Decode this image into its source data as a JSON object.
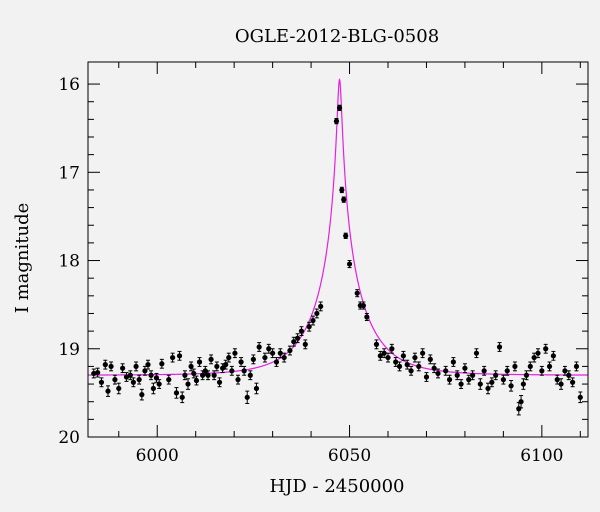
{
  "chart_data": {
    "type": "scatter",
    "title": "OGLE-2012-BLG-0508",
    "xlabel": "HJD - 2450000",
    "ylabel": "I magnitude",
    "xlim": [
      5982,
      6112
    ],
    "ylim": [
      20,
      15.75
    ],
    "y_inverted": true,
    "x_ticks": [
      6000,
      6050,
      6100
    ],
    "x_tick_labels": [
      "6000",
      "6050",
      "6100"
    ],
    "y_ticks": [
      16,
      17,
      18,
      19,
      20
    ],
    "y_tick_labels": [
      "16",
      "17",
      "18",
      "19",
      "20"
    ],
    "grid": false,
    "colors": {
      "model": "#e61ee6",
      "points": "#000000",
      "background": "#f2f2f2"
    },
    "model": {
      "name": "",
      "t0": 6047.4,
      "baseline_mag": 19.3,
      "peak_mag": 15.95,
      "u0": 0.046,
      "tE": 12
    },
    "series": [
      {
        "name": "",
        "points": [
          [
            5983.5,
            19.28,
            0.05
          ],
          [
            5984.5,
            19.27,
            0.05
          ],
          [
            5985.5,
            19.38,
            0.05
          ],
          [
            5986.5,
            19.18,
            0.05
          ],
          [
            5987.2,
            19.48,
            0.06
          ],
          [
            5988.0,
            19.2,
            0.05
          ],
          [
            5989.0,
            19.35,
            0.05
          ],
          [
            5990.0,
            19.45,
            0.06
          ],
          [
            5991.0,
            19.22,
            0.05
          ],
          [
            5992.0,
            19.32,
            0.05
          ],
          [
            5993.0,
            19.3,
            0.05
          ],
          [
            5993.8,
            19.38,
            0.05
          ],
          [
            5994.5,
            19.2,
            0.05
          ],
          [
            5995.3,
            19.35,
            0.05
          ],
          [
            5996.0,
            19.52,
            0.06
          ],
          [
            5996.8,
            19.25,
            0.05
          ],
          [
            5997.6,
            19.18,
            0.05
          ],
          [
            5998.4,
            19.3,
            0.05
          ],
          [
            5999.0,
            19.45,
            0.06
          ],
          [
            5999.8,
            19.33,
            0.05
          ],
          [
            6000.5,
            19.4,
            0.05
          ],
          [
            6001.2,
            19.17,
            0.05
          ],
          [
            6003.0,
            19.35,
            0.05
          ],
          [
            6004.0,
            19.1,
            0.05
          ],
          [
            6005.0,
            19.5,
            0.06
          ],
          [
            6005.8,
            19.08,
            0.05
          ],
          [
            6006.5,
            19.55,
            0.06
          ],
          [
            6007.2,
            19.3,
            0.05
          ],
          [
            6008.0,
            19.4,
            0.06
          ],
          [
            6008.8,
            19.2,
            0.05
          ],
          [
            6009.5,
            19.28,
            0.05
          ],
          [
            6010.2,
            19.36,
            0.05
          ],
          [
            6011.0,
            19.15,
            0.05
          ],
          [
            6011.8,
            19.3,
            0.05
          ],
          [
            6012.5,
            19.25,
            0.05
          ],
          [
            6013.2,
            19.3,
            0.05
          ],
          [
            6014.0,
            19.12,
            0.05
          ],
          [
            6014.8,
            19.3,
            0.05
          ],
          [
            6015.5,
            19.2,
            0.05
          ],
          [
            6016.2,
            19.38,
            0.05
          ],
          [
            6017.0,
            19.22,
            0.05
          ],
          [
            6017.8,
            19.18,
            0.05
          ],
          [
            6018.6,
            19.1,
            0.05
          ],
          [
            6019.4,
            19.25,
            0.05
          ],
          [
            6020.2,
            19.05,
            0.05
          ],
          [
            6021.0,
            19.35,
            0.05
          ],
          [
            6021.8,
            19.15,
            0.05
          ],
          [
            6022.6,
            19.25,
            0.05
          ],
          [
            6023.4,
            19.55,
            0.07
          ],
          [
            6024.2,
            19.3,
            0.05
          ],
          [
            6025.0,
            19.12,
            0.05
          ],
          [
            6025.8,
            19.45,
            0.06
          ],
          [
            6026.5,
            18.98,
            0.05
          ],
          [
            6028.0,
            19.1,
            0.05
          ],
          [
            6029.0,
            19.0,
            0.05
          ],
          [
            6030.0,
            19.05,
            0.05
          ],
          [
            6031.0,
            19.15,
            0.05
          ],
          [
            6032.0,
            19.05,
            0.05
          ],
          [
            6033.0,
            19.1,
            0.05
          ],
          [
            6034.5,
            19.02,
            0.05
          ],
          [
            6035.5,
            18.92,
            0.05
          ],
          [
            6036.5,
            18.88,
            0.05
          ],
          [
            6037.5,
            18.8,
            0.05
          ],
          [
            6038.5,
            18.95,
            0.05
          ],
          [
            6039.5,
            18.75,
            0.05
          ],
          [
            6040.5,
            18.68,
            0.05
          ],
          [
            6041.5,
            18.6,
            0.05
          ],
          [
            6042.5,
            18.52,
            0.05
          ],
          [
            6046.6,
            16.42,
            0.03
          ],
          [
            6047.4,
            16.27,
            0.03
          ],
          [
            6048.0,
            17.2,
            0.03
          ],
          [
            6048.5,
            17.31,
            0.03
          ],
          [
            6049.0,
            17.72,
            0.03
          ],
          [
            6050.0,
            18.04,
            0.04
          ],
          [
            6052.0,
            18.37,
            0.04
          ],
          [
            6052.8,
            18.51,
            0.04
          ],
          [
            6053.6,
            18.51,
            0.04
          ],
          [
            6054.5,
            18.64,
            0.04
          ],
          [
            6057.0,
            18.95,
            0.05
          ],
          [
            6058.0,
            19.08,
            0.05
          ],
          [
            6059.0,
            19.05,
            0.05
          ],
          [
            6060.0,
            19.1,
            0.05
          ],
          [
            6061.0,
            19.0,
            0.05
          ],
          [
            6062.0,
            19.15,
            0.05
          ],
          [
            6063.0,
            19.2,
            0.05
          ],
          [
            6064.0,
            19.08,
            0.05
          ],
          [
            6065.0,
            19.18,
            0.05
          ],
          [
            6066.0,
            19.25,
            0.05
          ],
          [
            6067.0,
            19.1,
            0.05
          ],
          [
            6068.0,
            19.2,
            0.05
          ],
          [
            6069.0,
            19.05,
            0.05
          ],
          [
            6070.0,
            19.32,
            0.05
          ],
          [
            6071.0,
            19.12,
            0.05
          ],
          [
            6072.0,
            19.22,
            0.05
          ],
          [
            6073.0,
            19.28,
            0.05
          ],
          [
            6075.0,
            19.25,
            0.05
          ],
          [
            6076.0,
            19.35,
            0.05
          ],
          [
            6077.0,
            19.15,
            0.05
          ],
          [
            6078.0,
            19.3,
            0.05
          ],
          [
            6079.0,
            19.4,
            0.05
          ],
          [
            6080.0,
            19.22,
            0.05
          ],
          [
            6081.0,
            19.35,
            0.05
          ],
          [
            6082.0,
            19.3,
            0.05
          ],
          [
            6083.0,
            19.05,
            0.05
          ],
          [
            6084.0,
            19.4,
            0.06
          ],
          [
            6085.0,
            19.25,
            0.05
          ],
          [
            6086.0,
            19.45,
            0.06
          ],
          [
            6087.0,
            19.38,
            0.05
          ],
          [
            6088.0,
            19.3,
            0.05
          ],
          [
            6089.0,
            18.98,
            0.05
          ],
          [
            6090.0,
            19.35,
            0.05
          ],
          [
            6091.0,
            19.25,
            0.05
          ],
          [
            6092.0,
            19.42,
            0.06
          ],
          [
            6093.0,
            19.2,
            0.05
          ],
          [
            6094.0,
            19.68,
            0.07
          ],
          [
            6094.6,
            19.6,
            0.07
          ],
          [
            6095.2,
            19.4,
            0.06
          ],
          [
            6096.0,
            19.3,
            0.05
          ],
          [
            6097.0,
            19.2,
            0.05
          ],
          [
            6098.0,
            19.1,
            0.05
          ],
          [
            6099.0,
            19.05,
            0.05
          ],
          [
            6100.0,
            19.25,
            0.05
          ],
          [
            6101.0,
            19.0,
            0.05
          ],
          [
            6102.0,
            19.2,
            0.05
          ],
          [
            6103.0,
            19.08,
            0.05
          ],
          [
            6104.0,
            19.35,
            0.05
          ],
          [
            6105.0,
            19.4,
            0.06
          ],
          [
            6106.0,
            19.25,
            0.05
          ],
          [
            6107.0,
            19.3,
            0.05
          ],
          [
            6108.0,
            19.38,
            0.05
          ],
          [
            6109.0,
            19.2,
            0.05
          ],
          [
            6110.0,
            19.55,
            0.06
          ]
        ]
      }
    ]
  }
}
